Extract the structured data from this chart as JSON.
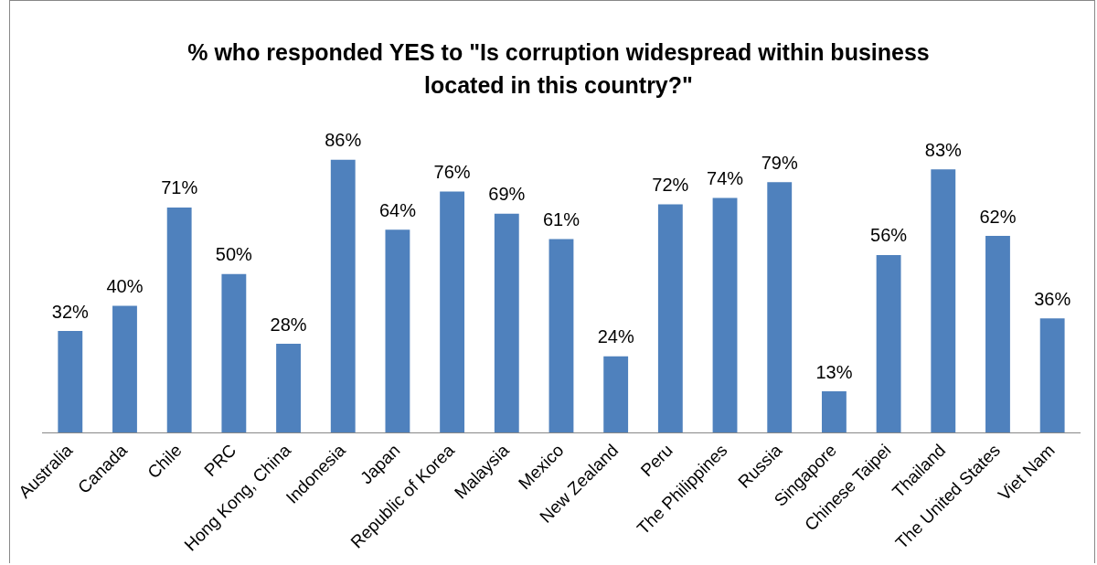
{
  "chart_data": {
    "type": "bar",
    "title": "% who responded YES to \"Is corruption widespread within business located in this country?\"",
    "categories": [
      "Australia",
      "Canada",
      "Chile",
      "PRC",
      "Hong Kong, China",
      "Indonesia",
      "Japan",
      "Republic of Korea",
      "Malaysia",
      "Mexico",
      "New Zealand",
      "Peru",
      "The Philippines",
      "Russia",
      "Singapore",
      "Chinese Taipei",
      "Thailand",
      "The United States",
      "Viet Nam"
    ],
    "values": [
      32,
      40,
      71,
      50,
      28,
      86,
      64,
      76,
      69,
      61,
      24,
      72,
      74,
      79,
      13,
      56,
      83,
      62,
      36
    ],
    "value_labels": [
      "32%",
      "40%",
      "71%",
      "50%",
      "28%",
      "86%",
      "64%",
      "76%",
      "69%",
      "61%",
      "24%",
      "72%",
      "74%",
      "79%",
      "13%",
      "56%",
      "83%",
      "62%",
      "36%"
    ],
    "color": "#4f81bd",
    "grid": false,
    "legend": false
  }
}
